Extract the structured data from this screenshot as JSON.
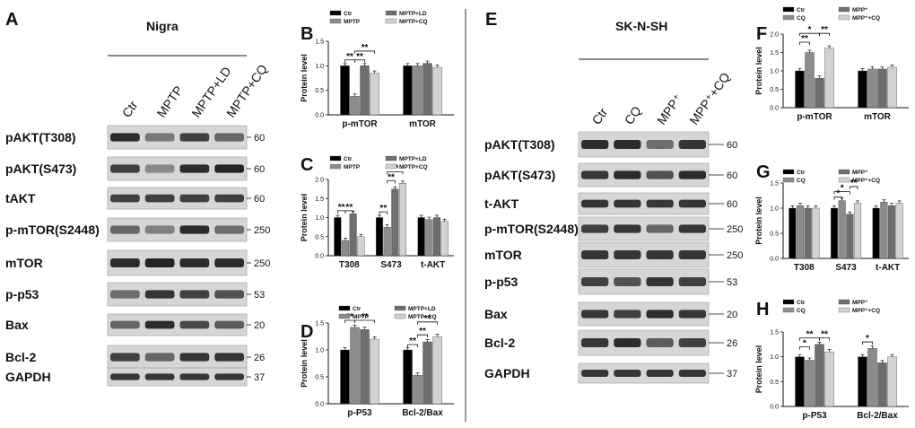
{
  "blots": [
    {
      "panel": "A",
      "title": "Nigra",
      "lanes": [
        "Ctr",
        "MPTP",
        "MPTP+LD",
        "MPTP+CQ"
      ],
      "rows": [
        {
          "label": "pAKT(T308)",
          "mw": "60"
        },
        {
          "label": "pAKT(S473)",
          "mw": "60"
        },
        {
          "label": "tAKT",
          "mw": "60"
        },
        {
          "label": "p-mTOR(S2448)",
          "mw": "250"
        },
        {
          "label": "mTOR",
          "mw": "250"
        },
        {
          "label": "p-p53",
          "mw": "53"
        },
        {
          "label": "Bax",
          "mw": "20"
        },
        {
          "label": "Bcl-2",
          "mw": "26"
        },
        {
          "label": "GAPDH",
          "mw": "37"
        }
      ]
    },
    {
      "panel": "E",
      "title": "SK-N-SH",
      "lanes": [
        "Ctr",
        "CQ",
        "MPP⁺",
        "MPP⁺+CQ"
      ],
      "rows": [
        {
          "label": "pAKT(T308)",
          "mw": "60"
        },
        {
          "label": "pAKT(S473)",
          "mw": "60"
        },
        {
          "label": "t-AKT",
          "mw": "60"
        },
        {
          "label": "p-mTOR(S2448)",
          "mw": "250"
        },
        {
          "label": "mTOR",
          "mw": "250"
        },
        {
          "label": "p-p53",
          "mw": "53"
        },
        {
          "label": "Bax",
          "mw": "20"
        },
        {
          "label": "Bcl-2",
          "mw": "26"
        },
        {
          "label": "GAPDH",
          "mw": "37"
        }
      ]
    }
  ],
  "colors": {
    "series": [
      "#000000",
      "#8c8c8c",
      "#6e6e6e",
      "#d2d2d2"
    ],
    "blot_bg": "#d6d6d6",
    "band": "#1a1a1a"
  },
  "chart_data": [
    {
      "panel": "B",
      "type": "bar",
      "ylabel": "Protein level",
      "ylim": [
        0,
        1.5
      ],
      "yticks": [
        "0.0",
        "0.5",
        "1.0",
        "1.5"
      ],
      "categories": [
        "p-mTOR",
        "mTOR"
      ],
      "series": [
        {
          "name": "Ctr",
          "values": [
            1.0,
            1.0
          ]
        },
        {
          "name": "MPTP",
          "values": [
            0.38,
            1.0
          ]
        },
        {
          "name": "MPTP+LD",
          "values": [
            1.0,
            1.05
          ]
        },
        {
          "name": "MPTP+CQ",
          "values": [
            0.85,
            0.97
          ]
        }
      ],
      "sig": [
        {
          "text": "**",
          "cat": 0,
          "from": 0,
          "to": 1,
          "y": 1.12
        },
        {
          "text": "**",
          "cat": 0,
          "from": 1,
          "to": 2,
          "y": 1.12
        },
        {
          "text": "**",
          "cat": 0,
          "from": 1,
          "to": 3,
          "y": 1.3
        }
      ]
    },
    {
      "panel": "C",
      "type": "bar",
      "ylabel": "Protein level",
      "ylim": [
        0,
        2.0
      ],
      "yticks": [
        "0.0",
        "0.5",
        "1.0",
        "1.5",
        "2.0"
      ],
      "categories": [
        "T308",
        "S473",
        "t-AKT"
      ],
      "series": [
        {
          "name": "Ctr",
          "values": [
            1.0,
            1.0,
            1.0
          ]
        },
        {
          "name": "MPTP",
          "values": [
            0.4,
            0.75,
            0.95
          ]
        },
        {
          "name": "MPTP+LD",
          "values": [
            1.1,
            1.75,
            1.0
          ]
        },
        {
          "name": "MPTP+CQ",
          "values": [
            0.5,
            1.9,
            0.9
          ]
        }
      ],
      "sig": [
        {
          "text": "**",
          "cat": 0,
          "from": 0,
          "to": 1,
          "y": 1.18
        },
        {
          "text": "**",
          "cat": 0,
          "from": 1,
          "to": 2,
          "y": 1.18
        },
        {
          "text": "**",
          "cat": 1,
          "from": 0,
          "to": 1,
          "y": 1.15
        },
        {
          "text": "**",
          "cat": 1,
          "from": 1,
          "to": 2,
          "y": 1.97
        },
        {
          "text": "**",
          "cat": 1,
          "from": 1,
          "to": 3,
          "y": 2.2
        }
      ]
    },
    {
      "panel": "D",
      "type": "bar",
      "ylabel": "Protein level",
      "ylim": [
        0,
        1.5
      ],
      "yticks": [
        "0.0",
        "0.5",
        "1.0",
        "1.5"
      ],
      "categories": [
        "p-P53",
        "Bcl-2/Bax"
      ],
      "series": [
        {
          "name": "Ctr",
          "values": [
            1.0,
            1.0
          ]
        },
        {
          "name": "MPTP",
          "values": [
            1.42,
            0.53
          ]
        },
        {
          "name": "MPTP+LD",
          "values": [
            1.38,
            1.15
          ]
        },
        {
          "name": "MPTP+CQ",
          "values": [
            1.2,
            1.25
          ]
        }
      ],
      "sig": [
        {
          "text": "**",
          "cat": 0,
          "from": 0,
          "to": 1,
          "y": 1.55
        },
        {
          "text": "**",
          "cat": 0,
          "from": 1,
          "to": 3,
          "y": 1.55
        },
        {
          "text": "**",
          "cat": 1,
          "from": 0,
          "to": 1,
          "y": 1.1
        },
        {
          "text": "**",
          "cat": 1,
          "from": 1,
          "to": 2,
          "y": 1.28
        },
        {
          "text": "**",
          "cat": 1,
          "from": 1,
          "to": 3,
          "y": 1.52
        }
      ]
    },
    {
      "panel": "F",
      "type": "bar",
      "ylabel": "Protein level",
      "ylim": [
        0,
        2.0
      ],
      "yticks": [
        "0.0",
        "0.5",
        "1.0",
        "1.5",
        "2.0"
      ],
      "categories": [
        "p-mTOR",
        "mTOR"
      ],
      "series": [
        {
          "name": "Ctr",
          "values": [
            1.0,
            1.0
          ]
        },
        {
          "name": "CQ",
          "values": [
            1.5,
            1.05
          ]
        },
        {
          "name": "MPP⁺",
          "values": [
            0.8,
            1.05
          ]
        },
        {
          "name": "MPP⁺+CQ",
          "values": [
            1.62,
            1.1
          ]
        }
      ],
      "sig": [
        {
          "text": "**",
          "cat": 0,
          "from": 0,
          "to": 1,
          "y": 1.78
        },
        {
          "text": "*",
          "cat": 0,
          "from": 0,
          "to": 2,
          "y": 2.02
        },
        {
          "text": "**",
          "cat": 0,
          "from": 2,
          "to": 3,
          "y": 2.02
        }
      ]
    },
    {
      "panel": "G",
      "type": "bar",
      "ylabel": "Protein level",
      "ylim": [
        0,
        1.5
      ],
      "yticks": [
        "0.0",
        "0.5",
        "1.0",
        "1.5"
      ],
      "categories": [
        "T308",
        "S473",
        "t-AKT"
      ],
      "series": [
        {
          "name": "Ctr",
          "values": [
            1.0,
            1.0,
            1.0
          ]
        },
        {
          "name": "CQ",
          "values": [
            1.05,
            1.15,
            1.12
          ]
        },
        {
          "name": "MPP⁺",
          "values": [
            1.0,
            0.88,
            1.05
          ]
        },
        {
          "name": "MPP⁺+CQ",
          "values": [
            1.0,
            1.1,
            1.1
          ]
        }
      ],
      "sig": [
        {
          "text": "*",
          "cat": 1,
          "from": 0,
          "to": 1,
          "y": 1.22
        },
        {
          "text": "*",
          "cat": 1,
          "from": 0,
          "to": 2,
          "y": 1.33
        },
        {
          "text": "**",
          "cat": 1,
          "from": 2,
          "to": 3,
          "y": 1.43
        }
      ]
    },
    {
      "panel": "H",
      "type": "bar",
      "ylabel": "Protein level",
      "ylim": [
        0,
        1.5
      ],
      "yticks": [
        "0.0",
        "0.5",
        "1.0",
        "1.5"
      ],
      "categories": [
        "p-P53",
        "Bcl-2/Bax"
      ],
      "series": [
        {
          "name": "Ctr",
          "values": [
            1.0,
            1.0
          ]
        },
        {
          "name": "CQ",
          "values": [
            0.93,
            1.17
          ]
        },
        {
          "name": "MPP⁺",
          "values": [
            1.25,
            0.88
          ]
        },
        {
          "name": "MPP⁺+CQ",
          "values": [
            1.1,
            1.0
          ]
        }
      ],
      "sig": [
        {
          "text": "*",
          "cat": 0,
          "from": 0,
          "to": 1,
          "y": 1.2
        },
        {
          "text": "**",
          "cat": 0,
          "from": 0,
          "to": 2,
          "y": 1.38
        },
        {
          "text": "**",
          "cat": 0,
          "from": 2,
          "to": 3,
          "y": 1.38
        },
        {
          "text": "*",
          "cat": 1,
          "from": 0,
          "to": 1,
          "y": 1.3
        }
      ]
    }
  ]
}
